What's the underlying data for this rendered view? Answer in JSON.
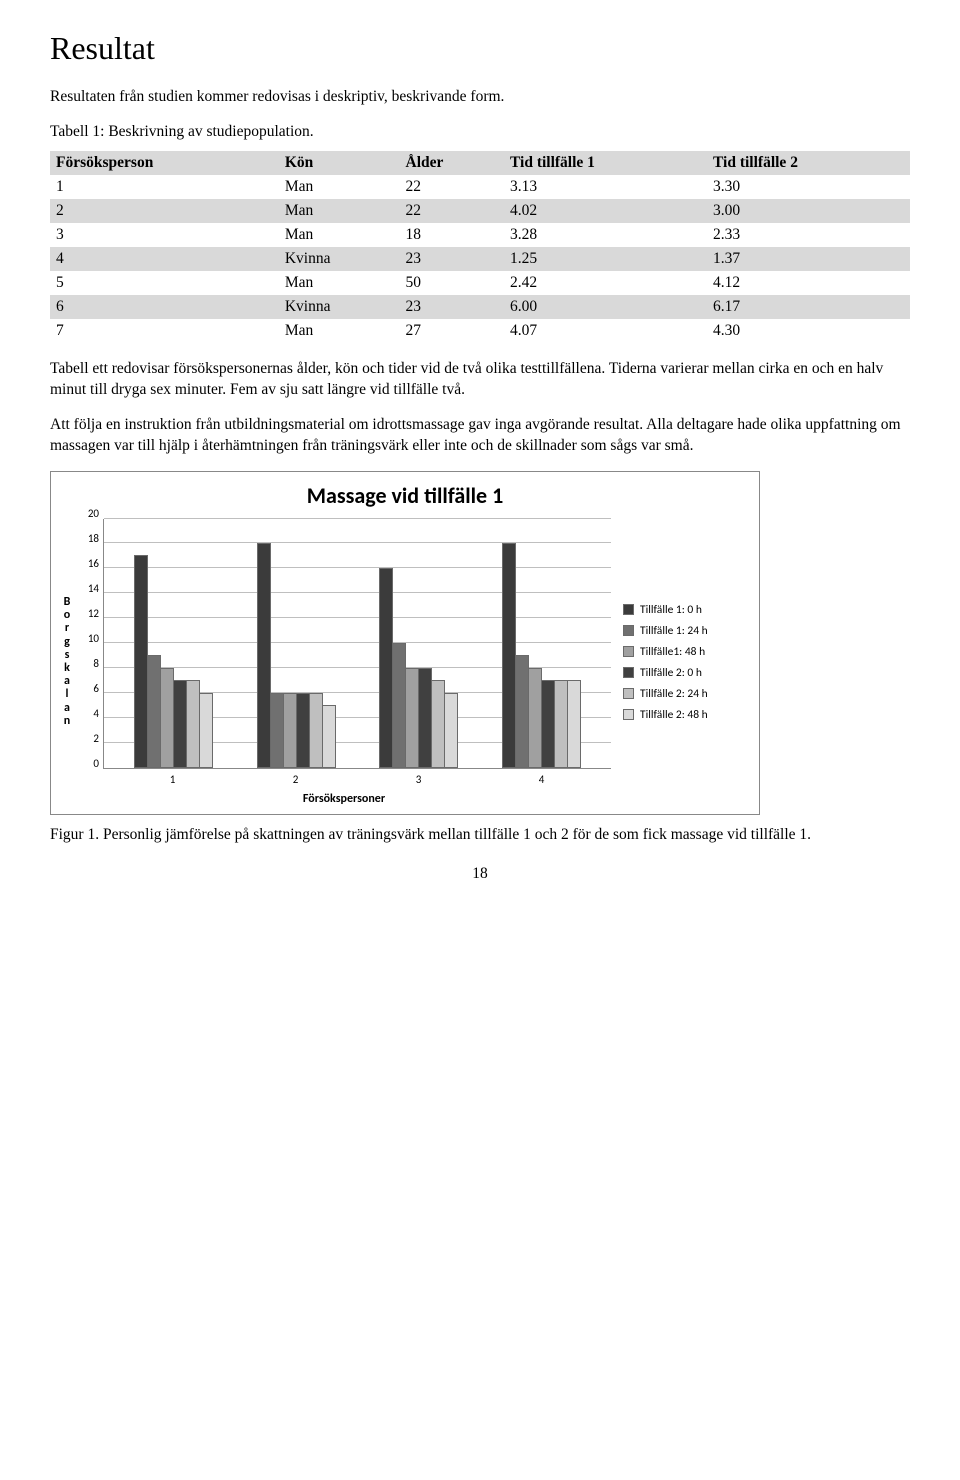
{
  "heading": "Resultat",
  "intro": "Resultaten från studien kommer redovisas i deskriptiv, beskrivande form.",
  "table1": {
    "caption": "Tabell 1: Beskrivning av studiepopulation.",
    "columns": [
      "Försöksperson",
      "Kön",
      "Ålder",
      "Tid tillfälle 1",
      "Tid tillfälle 2"
    ],
    "rows": [
      [
        "1",
        "Man",
        "22",
        "3.13",
        "3.30"
      ],
      [
        "2",
        "Man",
        "22",
        "4.02",
        "3.00"
      ],
      [
        "3",
        "Man",
        "18",
        "3.28",
        "2.33"
      ],
      [
        "4",
        "Kvinna",
        "23",
        "1.25",
        "1.37"
      ],
      [
        "5",
        "Man",
        "50",
        "2.42",
        "4.12"
      ],
      [
        "6",
        "Kvinna",
        "23",
        "6.00",
        "6.17"
      ],
      [
        "7",
        "Man",
        "27",
        "4.07",
        "4.30"
      ]
    ],
    "shade_color": "#d9d9d9"
  },
  "para1": "Tabell ett redovisar försökspersonernas ålder, kön och tider vid de två olika testtillfällena. Tiderna varierar mellan cirka en och en halv minut till dryga sex minuter. Fem av sju satt längre vid tillfälle två.",
  "para2": "Att följa en instruktion från utbildningsmaterial om idrottsmassage gav inga avgörande resultat. Alla deltagare hade olika uppfattning om massagen var till hjälp i återhämtningen från träningsvärk eller inte och de skillnader som sågs var små.",
  "chart": {
    "type": "bar",
    "title": "Massage vid tillfälle 1",
    "ylabel": "Borgskalan",
    "xlabel": "Försökspersoner",
    "ylim": [
      0,
      20
    ],
    "ytick_step": 2,
    "categories": [
      "1",
      "2",
      "3",
      "4"
    ],
    "series": [
      {
        "label": "Tillfälle 1: 0 h",
        "color": "#3b3b3b",
        "values": [
          17,
          18,
          16,
          18
        ]
      },
      {
        "label": "Tillfälle 1: 24 h",
        "color": "#707070",
        "values": [
          9,
          6,
          10,
          9
        ]
      },
      {
        "label": "Tillfälle1: 48 h",
        "color": "#a0a0a0",
        "values": [
          8,
          6,
          8,
          8
        ]
      },
      {
        "label": "Tillfälle 2: 0 h",
        "color": "#404040",
        "values": [
          7,
          6,
          8,
          7
        ]
      },
      {
        "label": "Tillfälle 2: 24 h",
        "color": "#bfbfbf",
        "values": [
          7,
          6,
          7,
          7
        ]
      },
      {
        "label": "Tillfälle 2: 48 h",
        "color": "#d9d9d9",
        "values": [
          6,
          5,
          6,
          7
        ]
      }
    ],
    "grid_color": "#bfbfbf",
    "border_color": "#888888",
    "tick_fontsize": 11,
    "label_fontsize": 12,
    "title_fontsize": 22,
    "font_family": "Calibri"
  },
  "figure_caption": "Figur 1. Personlig jämförelse på skattningen av träningsvärk mellan tillfälle 1 och 2 för de som fick massage vid tillfälle 1.",
  "page_number": "18"
}
